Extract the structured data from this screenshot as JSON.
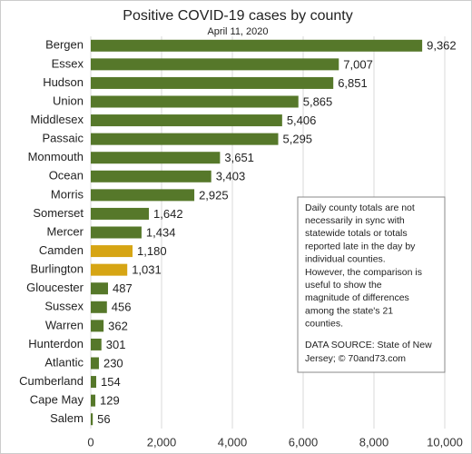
{
  "chart_data": {
    "type": "barh",
    "title": "Positive COVID-19 cases by county",
    "subtitle": "April 11, 2020",
    "categories": [
      "Bergen",
      "Essex",
      "Hudson",
      "Union",
      "Middlesex",
      "Passaic",
      "Monmouth",
      "Ocean",
      "Morris",
      "Somerset",
      "Mercer",
      "Camden",
      "Burlington",
      "Gloucester",
      "Sussex",
      "Warren",
      "Hunterdon",
      "Atlantic",
      "Cumberland",
      "Cape May",
      "Salem"
    ],
    "values": [
      9362,
      7007,
      6851,
      5865,
      5406,
      5295,
      3651,
      3403,
      2925,
      1642,
      1434,
      1180,
      1031,
      487,
      456,
      362,
      301,
      230,
      154,
      129,
      56
    ],
    "value_labels": [
      "9,362",
      "7,007",
      "6,851",
      "5,865",
      "5,406",
      "5,295",
      "3,651",
      "3,403",
      "2,925",
      "1,642",
      "1,434",
      "1,180",
      "1,031",
      "487",
      "456",
      "362",
      "301",
      "230",
      "154",
      "129",
      "56"
    ],
    "colors": [
      "#56782a",
      "#56782a",
      "#56782a",
      "#56782a",
      "#56782a",
      "#56782a",
      "#56782a",
      "#56782a",
      "#56782a",
      "#56782a",
      "#56782a",
      "#d6a514",
      "#d6a514",
      "#56782a",
      "#56782a",
      "#56782a",
      "#56782a",
      "#56782a",
      "#56782a",
      "#56782a",
      "#56782a"
    ],
    "xlim": [
      0,
      10000
    ],
    "xticks": [
      0,
      {
        "value": 2000,
        "label": "2,000"
      },
      {
        "value": 4000,
        "label": "4,000"
      },
      {
        "value": 6000,
        "label": "6,000"
      },
      {
        "value": 8000,
        "label": "8,000"
      },
      {
        "value": 10000,
        "label": "10,000"
      }
    ],
    "grid": true,
    "annotation": [
      "Daily county totals are not",
      "necessarily in sync with",
      "statewide totals or totals",
      "reported late in the day by",
      "individual  counties.",
      "However, the comparison  is",
      "useful to show the",
      "magnitude  of differences",
      "among the state's 21",
      "counties."
    ],
    "source": [
      "DATA SOURCE: State of New",
      "Jersey;  © 70and73.com"
    ]
  }
}
